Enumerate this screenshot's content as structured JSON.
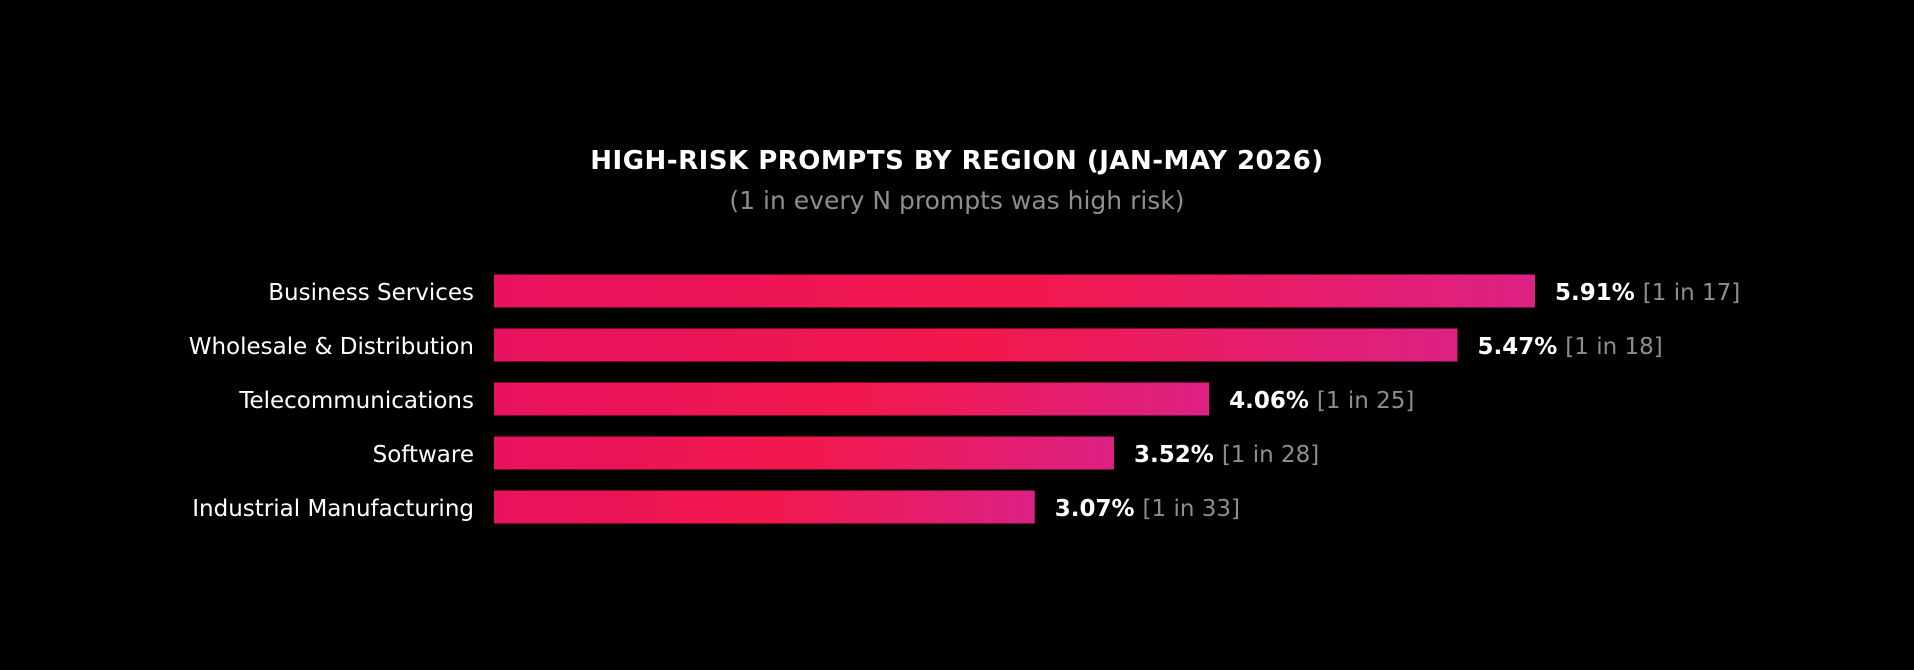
{
  "chart_data": {
    "type": "bar",
    "orientation": "horizontal",
    "title": "HIGH-RISK PROMPTS BY REGION (JAN-MAY 2026)",
    "subtitle": "(1 in every N prompts was high risk)",
    "categories": [
      "Business Services",
      "Wholesale & Distribution",
      "Telecommunications",
      "Software",
      "Industrial Manufacturing"
    ],
    "values": [
      5.91,
      5.47,
      4.06,
      3.52,
      3.07
    ],
    "value_labels": [
      "5.91%",
      "5.47%",
      "4.06%",
      "3.52%",
      "3.07%"
    ],
    "ratio_labels": [
      "[1 in 17]",
      "[1 in 18]",
      "[1 in 25]",
      "[1 in 28]",
      "[1 in 33]"
    ],
    "xlim": [
      0,
      5.91
    ],
    "grid": false,
    "legend": "none"
  },
  "colors": {
    "background": "#000000",
    "bar_start": "#e8115f",
    "bar_mid": "#f2184c",
    "bar_end": "#dc2183",
    "label_text": "#ffffff",
    "value_text": "#ffffff",
    "ratio_text": "#8e8e8e",
    "subtitle_text": "#8e8e8e"
  }
}
